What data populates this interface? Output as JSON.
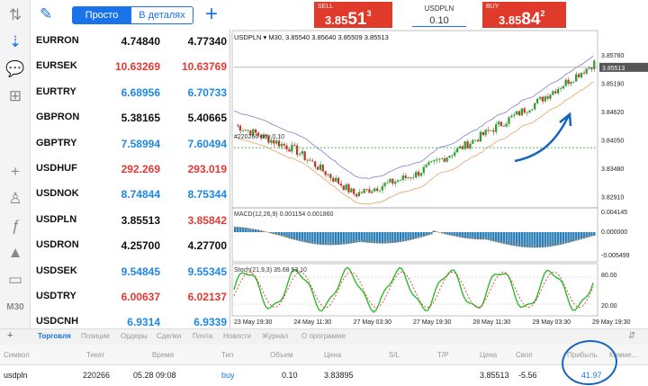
{
  "toolbar": {
    "seg_simple": "Просто",
    "seg_detail": "В деталях",
    "timeframe": "M30"
  },
  "quotes": [
    {
      "symbol": "EURRON",
      "bid": "4.74840",
      "ask": "4.77340",
      "bid_color": "#111111",
      "ask_color": "#111111"
    },
    {
      "symbol": "EURSEK",
      "bid": "10.63269",
      "ask": "10.63769",
      "bid_color": "#e53935",
      "ask_color": "#e53935"
    },
    {
      "symbol": "EURTRY",
      "bid": "6.68956",
      "ask": "6.70733",
      "bid_color": "#1e88e5",
      "ask_color": "#1e88e5"
    },
    {
      "symbol": "GBPRON",
      "bid": "5.38165",
      "ask": "5.40665",
      "bid_color": "#111111",
      "ask_color": "#111111"
    },
    {
      "symbol": "GBPTRY",
      "bid": "7.58994",
      "ask": "7.60494",
      "bid_color": "#1e88e5",
      "ask_color": "#1e88e5"
    },
    {
      "symbol": "USDHUF",
      "bid": "292.269",
      "ask": "293.019",
      "bid_color": "#e53935",
      "ask_color": "#e53935"
    },
    {
      "symbol": "USDNOK",
      "bid": "8.74844",
      "ask": "8.75344",
      "bid_color": "#1e88e5",
      "ask_color": "#1e88e5"
    },
    {
      "symbol": "USDPLN",
      "bid": "3.85513",
      "ask": "3.85842",
      "bid_color": "#111111",
      "ask_color": "#e53935"
    },
    {
      "symbol": "USDRON",
      "bid": "4.25700",
      "ask": "4.27700",
      "bid_color": "#111111",
      "ask_color": "#111111"
    },
    {
      "symbol": "USDSEK",
      "bid": "9.54845",
      "ask": "9.55345",
      "bid_color": "#1e88e5",
      "ask_color": "#1e88e5"
    },
    {
      "symbol": "USDTRY",
      "bid": "6.00637",
      "ask": "6.02137",
      "bid_color": "#e53935",
      "ask_color": "#e53935"
    },
    {
      "symbol": "USDCNH",
      "bid": "6.9314",
      "ask": "6.9339",
      "bid_color": "#1e88e5",
      "ask_color": "#1e88e5"
    }
  ],
  "trade": {
    "sell_label": "SELL",
    "sell_small": "3.85",
    "sell_big": "51",
    "sell_sup": "3",
    "buy_label": "BUY",
    "buy_small": "3.85",
    "buy_big": "84",
    "buy_sup": "2",
    "symbol": "USDPLN",
    "lot": "0.10"
  },
  "chart": {
    "header": "USDPLN ▾ M30, 3.85540 3.85640 3.85509 3.85513",
    "order_label": "#220266 buy 0.10",
    "macd_label": "MACD(12,26,9) 0.001154 0.001860",
    "stoch_label": "Stoch(21,9,3) 35.68 53.10",
    "price_ticks": [
      "3.85760",
      "3.85190",
      "3.84620",
      "3.84050",
      "3.83480",
      "3.82910"
    ],
    "current_price": "3.85513",
    "macd_ticks": [
      "0.004145",
      "0.000000",
      "-0.005499"
    ],
    "stoch_ticks": [
      "80.00",
      "20.00"
    ],
    "time_ticks": [
      "23 May 19:30",
      "24 May 11:30",
      "27 May 03:30",
      "27 May 19:30",
      "28 May 11:30",
      "29 May 03:30",
      "29 May 19:30"
    ]
  },
  "chart_data": {
    "type": "line",
    "x": [
      "23 May 19:30",
      "24 May 11:30",
      "27 May 03:30",
      "27 May 19:30",
      "28 May 11:30",
      "29 May 03:30",
      "29 May 19:30"
    ],
    "series": [
      {
        "values": [
          3.8435,
          3.8385,
          3.8295,
          3.8335,
          3.8405,
          3.8478,
          3.856
        ]
      }
    ],
    "ylim": [
      3.827,
      3.86
    ]
  },
  "tabs": [
    "Торговля",
    "Позиции",
    "Ордеры",
    "Сделки",
    "Почта",
    "Новости",
    "Журнал",
    "О программе"
  ],
  "columns": [
    "Символ",
    "Тикет",
    "Время",
    "Тип",
    "Объем",
    "Цена",
    "S/L",
    "T/P",
    "Цена",
    "Своп",
    "Прибыль",
    "Комме..."
  ],
  "position": {
    "symbol": "usdpln",
    "ticket": "220266",
    "time": "05.28 09:08",
    "type": "buy",
    "volume": "0.10",
    "price": "3.83895",
    "price_now": "3.85513",
    "swap": "-5.56",
    "profit": "41.97"
  }
}
